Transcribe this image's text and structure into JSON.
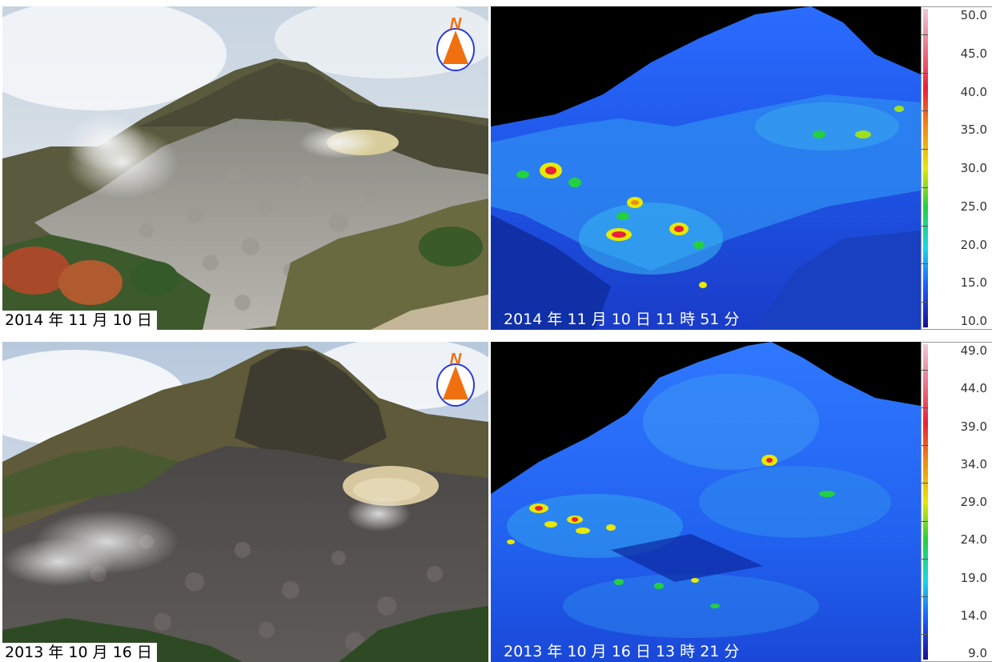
{
  "panels": [
    {
      "photo_caption": "2014 年 11 月 10 日",
      "thermal_caption": "2014 年 11 月 10 日 11 時 51 分",
      "scale_labels": [
        "50.0",
        "45.0",
        "40.0",
        "35.0",
        "30.0",
        "25.0",
        "20.0",
        "15.0",
        "10.0"
      ],
      "compass_letter": "N"
    },
    {
      "photo_caption": "2013 年 10 月 16 日",
      "thermal_caption": "2013 年 10 月 16 日 13 時 21 分",
      "scale_labels": [
        "49.0",
        "44.0",
        "39.0",
        "34.0",
        "29.0",
        "24.0",
        "19.0",
        "14.0",
        "9.0"
      ],
      "compass_letter": "N"
    }
  ],
  "colors": {
    "scale_top": "#ecc8d8",
    "scale_red": "#e8203a",
    "scale_orange": "#f08a10",
    "scale_yellow": "#e6e800",
    "scale_green": "#22d040",
    "scale_cyan": "#18d8e8",
    "scale_blue": "#1f5cff",
    "scale_bottom": "#1a1090",
    "compass_orange": "#f07010",
    "compass_blue": "#2a3adf"
  }
}
